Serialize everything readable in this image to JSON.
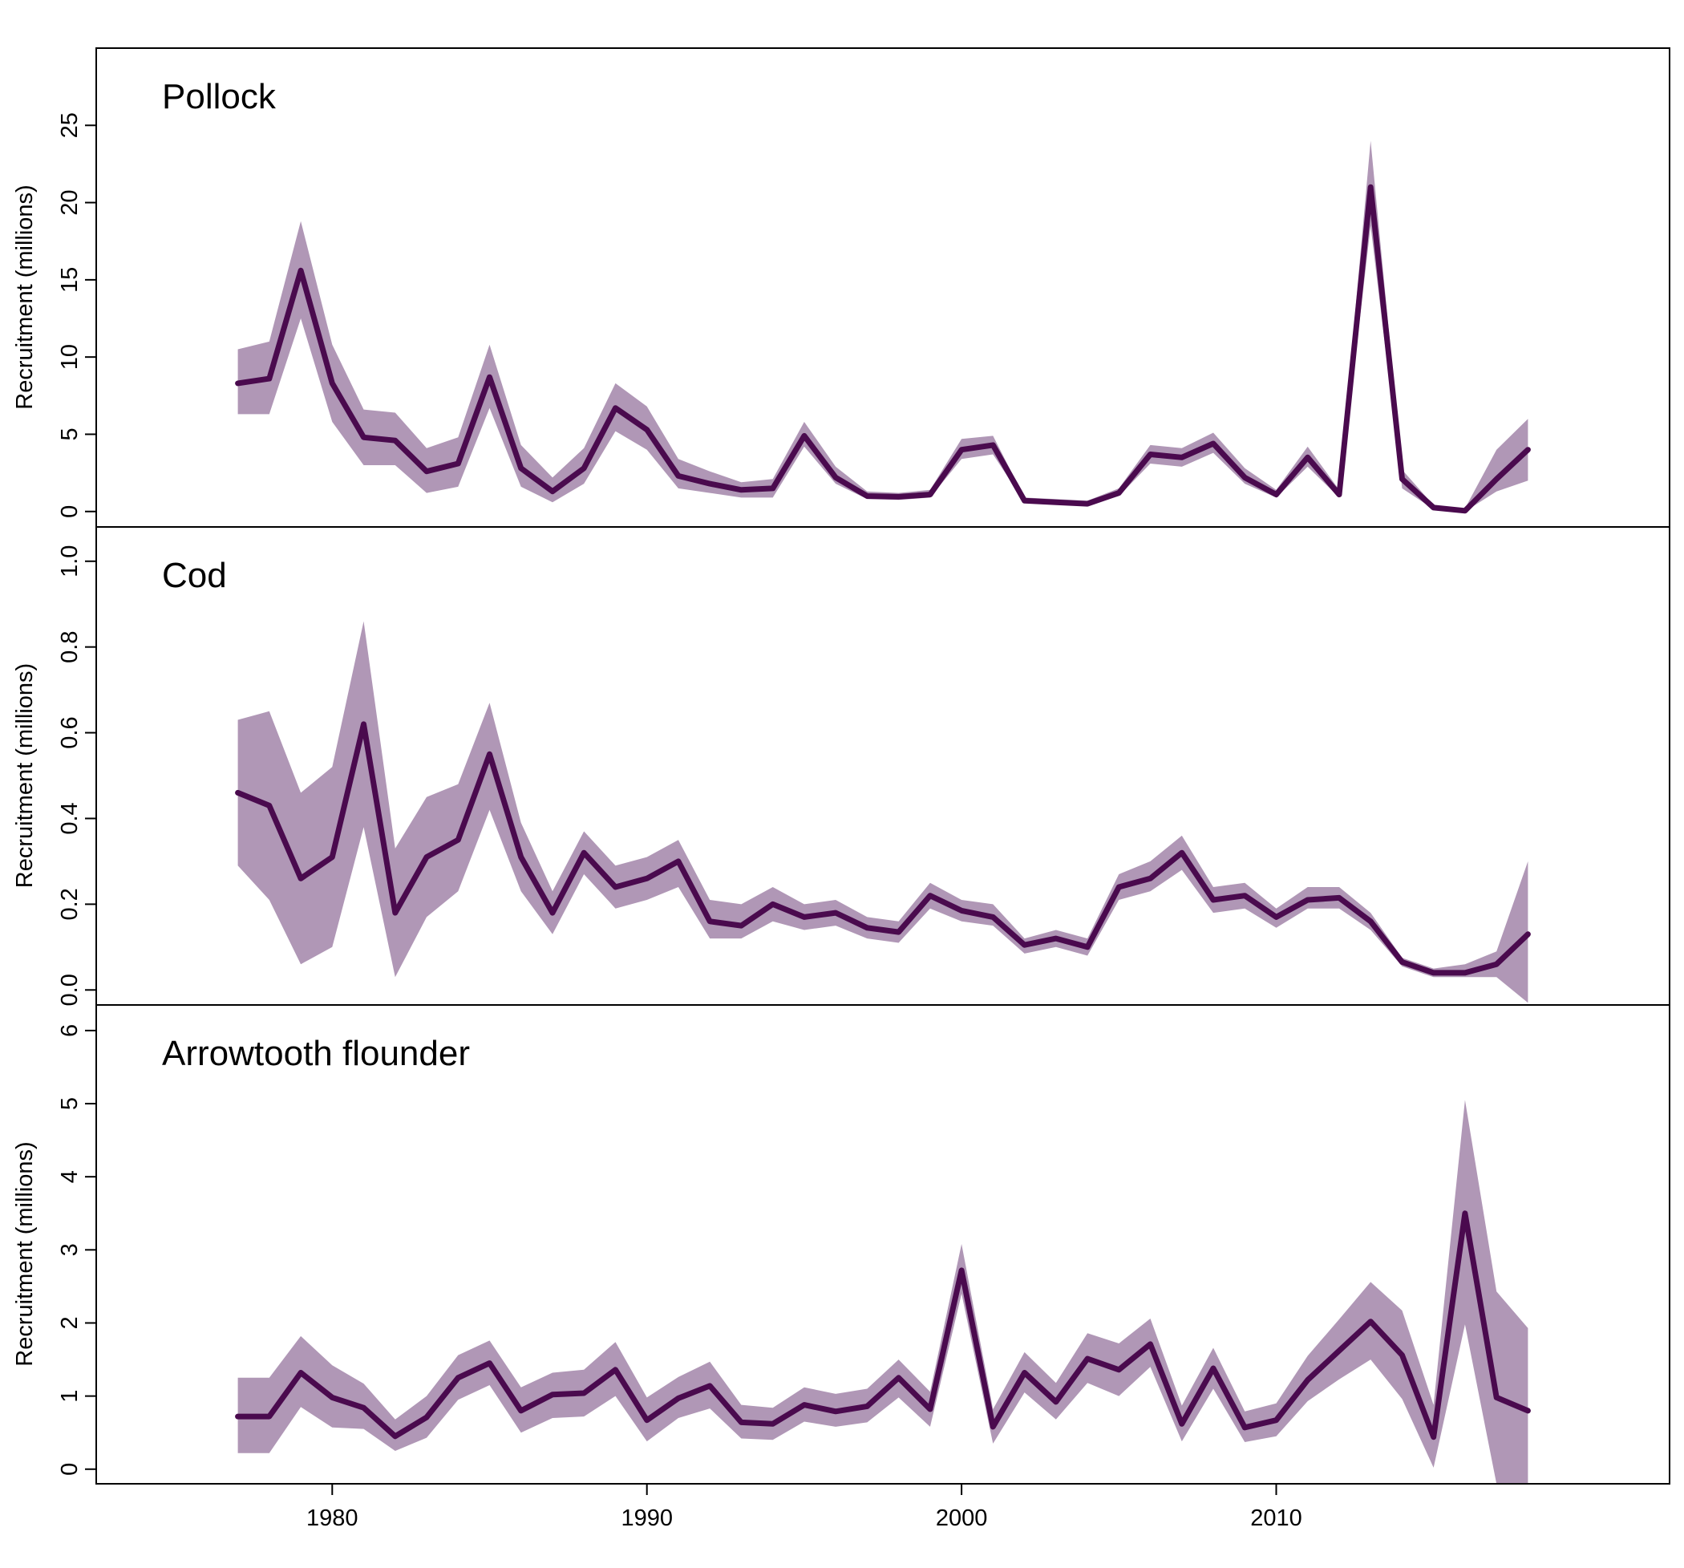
{
  "colors": {
    "line": "#4a0a4e",
    "band": "#b097b6",
    "frame": "#000000"
  },
  "x_axis": {
    "ticks": [
      1980,
      1990,
      2000,
      2010
    ],
    "xlim": [
      1972.5,
      2022.5
    ]
  },
  "chart_data": [
    {
      "type": "line",
      "title": "Pollock",
      "ylabel": "Recruitment (millions)",
      "ylim": [
        -1,
        30
      ],
      "yticks": [
        0,
        5,
        10,
        15,
        20,
        25
      ],
      "x": [
        1977,
        1978,
        1979,
        1980,
        1981,
        1982,
        1983,
        1984,
        1985,
        1986,
        1987,
        1988,
        1989,
        1990,
        1991,
        1992,
        1993,
        1994,
        1995,
        1996,
        1997,
        1998,
        1999,
        2000,
        2001,
        2002,
        2003,
        2004,
        2005,
        2006,
        2007,
        2008,
        2009,
        2010,
        2011,
        2012,
        2013,
        2014,
        2015,
        2016,
        2017,
        2018
      ],
      "series": [
        {
          "values": [
            8.3,
            8.6,
            15.6,
            8.3,
            4.8,
            4.6,
            2.6,
            3.1,
            8.7,
            2.8,
            1.3,
            2.8,
            6.7,
            5.3,
            2.3,
            1.8,
            1.4,
            1.5,
            4.9,
            2.2,
            1.0,
            0.95,
            1.1,
            4.0,
            4.3,
            0.7,
            0.6,
            0.5,
            1.2,
            3.7,
            3.5,
            4.4,
            2.2,
            1.1,
            3.5,
            1.1,
            21.0,
            2.1,
            0.25,
            0.05,
            2.1,
            4.0
          ],
          "lower": [
            6.3,
            6.3,
            12.5,
            5.8,
            3.0,
            3.0,
            1.2,
            1.6,
            6.7,
            1.6,
            0.6,
            1.8,
            5.2,
            4.0,
            1.5,
            1.2,
            0.9,
            0.9,
            4.2,
            1.8,
            0.8,
            0.75,
            0.9,
            3.4,
            3.7,
            0.6,
            0.5,
            0.4,
            1.0,
            3.1,
            2.9,
            3.8,
            1.8,
            0.9,
            2.9,
            0.9,
            18.5,
            1.5,
            0.15,
            0.0,
            1.3,
            2.0
          ],
          "upper": [
            10.5,
            11.0,
            18.8,
            10.8,
            6.6,
            6.4,
            4.1,
            4.8,
            10.8,
            4.3,
            2.2,
            4.1,
            8.3,
            6.8,
            3.4,
            2.6,
            1.9,
            2.1,
            5.8,
            2.9,
            1.3,
            1.2,
            1.4,
            4.7,
            4.9,
            0.9,
            0.8,
            0.7,
            1.5,
            4.3,
            4.1,
            5.1,
            2.8,
            1.4,
            4.2,
            1.4,
            24.0,
            2.7,
            0.4,
            0.2,
            4.0,
            6.0
          ]
        }
      ]
    },
    {
      "type": "line",
      "title": "Cod",
      "ylabel": "Recruitment (millions)",
      "ylim": [
        -0.035,
        1.08
      ],
      "yticks": [
        0.0,
        0.2,
        0.4,
        0.6,
        0.8,
        1.0
      ],
      "x": [
        1977,
        1978,
        1979,
        1980,
        1981,
        1982,
        1983,
        1984,
        1985,
        1986,
        1987,
        1988,
        1989,
        1990,
        1991,
        1992,
        1993,
        1994,
        1995,
        1996,
        1997,
        1998,
        1999,
        2000,
        2001,
        2002,
        2003,
        2004,
        2005,
        2006,
        2007,
        2008,
        2009,
        2010,
        2011,
        2012,
        2013,
        2014,
        2015,
        2016,
        2017,
        2018
      ],
      "series": [
        {
          "values": [
            0.46,
            0.43,
            0.26,
            0.31,
            0.62,
            0.18,
            0.31,
            0.35,
            0.55,
            0.31,
            0.18,
            0.32,
            0.24,
            0.26,
            0.3,
            0.16,
            0.15,
            0.2,
            0.17,
            0.18,
            0.145,
            0.135,
            0.22,
            0.185,
            0.17,
            0.105,
            0.12,
            0.1,
            0.24,
            0.26,
            0.32,
            0.21,
            0.22,
            0.17,
            0.21,
            0.215,
            0.16,
            0.065,
            0.04,
            0.04,
            0.06,
            0.13
          ],
          "lower": [
            0.29,
            0.21,
            0.06,
            0.1,
            0.38,
            0.03,
            0.17,
            0.23,
            0.42,
            0.23,
            0.13,
            0.27,
            0.19,
            0.21,
            0.24,
            0.12,
            0.12,
            0.16,
            0.14,
            0.15,
            0.12,
            0.11,
            0.19,
            0.16,
            0.15,
            0.085,
            0.1,
            0.08,
            0.21,
            0.23,
            0.28,
            0.18,
            0.19,
            0.145,
            0.19,
            0.19,
            0.14,
            0.055,
            0.03,
            0.03,
            0.03,
            -0.03
          ],
          "upper": [
            0.63,
            0.65,
            0.46,
            0.52,
            0.86,
            0.33,
            0.45,
            0.48,
            0.67,
            0.39,
            0.23,
            0.37,
            0.29,
            0.31,
            0.35,
            0.21,
            0.2,
            0.24,
            0.2,
            0.21,
            0.17,
            0.16,
            0.25,
            0.21,
            0.2,
            0.12,
            0.14,
            0.12,
            0.27,
            0.3,
            0.36,
            0.24,
            0.25,
            0.19,
            0.24,
            0.24,
            0.18,
            0.075,
            0.05,
            0.06,
            0.09,
            0.3
          ]
        }
      ]
    },
    {
      "type": "line",
      "title": "Arrowtooth flounder",
      "ylabel": "Recruitment (millions)",
      "ylim": [
        -0.2,
        6.35
      ],
      "yticks": [
        0,
        1,
        2,
        3,
        4,
        5,
        6
      ],
      "x": [
        1977,
        1978,
        1979,
        1980,
        1981,
        1982,
        1983,
        1984,
        1985,
        1986,
        1987,
        1988,
        1989,
        1990,
        1991,
        1992,
        1993,
        1994,
        1995,
        1996,
        1997,
        1998,
        1999,
        2000,
        2001,
        2002,
        2003,
        2004,
        2005,
        2006,
        2007,
        2008,
        2009,
        2010,
        2011,
        2012,
        2013,
        2014,
        2015,
        2016,
        2017,
        2018
      ],
      "series": [
        {
          "values": [
            0.72,
            0.72,
            1.32,
            0.98,
            0.84,
            0.45,
            0.71,
            1.25,
            1.45,
            0.8,
            1.02,
            1.04,
            1.36,
            0.67,
            0.97,
            1.14,
            0.64,
            0.62,
            0.88,
            0.79,
            0.86,
            1.25,
            0.82,
            2.72,
            0.58,
            1.32,
            0.92,
            1.51,
            1.36,
            1.71,
            0.62,
            1.38,
            0.57,
            0.67,
            1.22,
            1.62,
            2.02,
            1.56,
            0.44,
            3.5,
            0.98,
            0.8
          ],
          "lower": [
            0.22,
            0.22,
            0.85,
            0.57,
            0.55,
            0.25,
            0.43,
            0.95,
            1.15,
            0.5,
            0.7,
            0.72,
            1.0,
            0.38,
            0.7,
            0.83,
            0.42,
            0.4,
            0.65,
            0.58,
            0.64,
            0.98,
            0.58,
            2.4,
            0.35,
            1.05,
            0.68,
            1.18,
            1.0,
            1.4,
            0.38,
            1.1,
            0.37,
            0.45,
            0.93,
            1.23,
            1.5,
            0.96,
            0.02,
            1.98,
            -0.2,
            -0.2
          ],
          "upper": [
            1.25,
            1.25,
            1.82,
            1.42,
            1.17,
            0.68,
            1.0,
            1.56,
            1.76,
            1.12,
            1.32,
            1.36,
            1.74,
            0.98,
            1.26,
            1.47,
            0.88,
            0.84,
            1.12,
            1.03,
            1.1,
            1.5,
            1.06,
            3.08,
            0.82,
            1.6,
            1.18,
            1.86,
            1.72,
            2.06,
            0.87,
            1.66,
            0.79,
            0.9,
            1.55,
            2.05,
            2.56,
            2.17,
            0.88,
            5.05,
            2.43,
            1.93
          ]
        }
      ]
    }
  ]
}
